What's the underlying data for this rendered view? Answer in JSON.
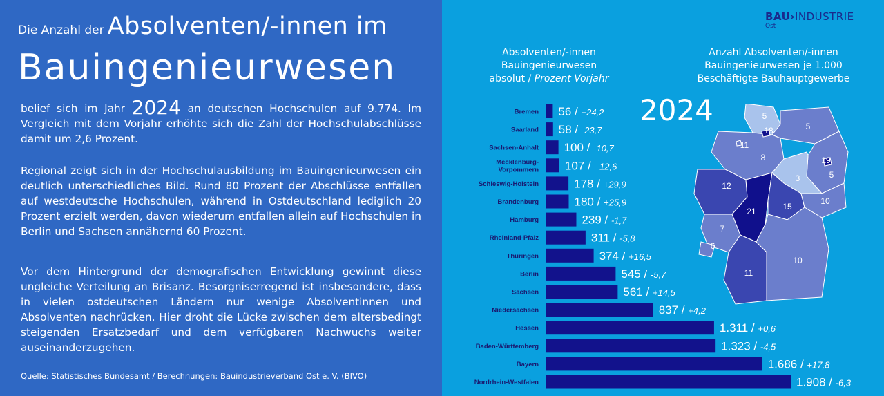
{
  "left": {
    "headline_small": "Die Anzahl der",
    "headline_big": "Absolventen/-innen im",
    "headline_main": "Bauingenieurwesen",
    "p1_before": "belief sich im Jahr",
    "p1_year": "2024",
    "p1_after": "an deutschen Hochschulen auf 9.774. Im Vergleich mit dem Vorjahr erhöhte sich die Zahl der Hochschulabschlüsse damit um 2,6 Prozent.",
    "p2": "Regional zeigt sich in der Hochschulausbildung im Bauingenieurwesen ein deutlich unterschiedliches Bild. Rund 80 Prozent der Abschlüsse entfallen auf westdeutsche Hochschulen, während in Ostdeutschland lediglich 20 Prozent erzielt werden, davon wiederum entfallen allein auf Hochschulen in Berlin und Sachsen annähernd 60 Prozent.",
    "p3": "Vor dem Hintergrund der demografischen Entwicklung gewinnt diese ungleiche Verteilung an Brisanz. Besorgniserregend ist insbesondere, dass in vielen ostdeutschen Ländern nur wenige Absolventinnen und Absolventen nachrücken. Hier droht die Lücke zwischen dem altersbedingt steigenden Ersatzbedarf und dem verfügbaren Nachwuchs weiter auseinanderzugehen.",
    "source": "Quelle: Statistisches Bundesamt / Berechnungen: Bauindustrieverband Ost e. V. (BIVO)"
  },
  "logo": {
    "bau": "BAU",
    "arrow": "›",
    "industrie": "INDUSTRIE",
    "ost": "Ost"
  },
  "right": {
    "col1_line1": "Absolventen/-innen",
    "col1_line2": "Bauingenieurwesen",
    "col1_line3a": "absolut /",
    "col1_line3b": "Prozent Vorjahr",
    "col2_line1": "Anzahl Absolventen/-innen",
    "col2_line2": "Bauingenieurwesen je 1.000",
    "col2_line3": "Beschäftigte Bauhauptgewerbe",
    "year": "2024"
  },
  "colors": {
    "left_bg": "#2f68c4",
    "right_bg": "#0aa0df",
    "bar": "#12128c",
    "map_dark": "#10108c",
    "map_mid": "#3a46b0",
    "map_light": "#6b7ecc",
    "map_pale": "#a9c3ec"
  },
  "chart_data": {
    "type": "bar",
    "orientation": "horizontal",
    "categories": [
      "Bremen",
      "Saarland",
      "Sachsen-Anhalt",
      "Mecklenburg-Vorpommern",
      "Schleswig-Holstein",
      "Brandenburg",
      "Hamburg",
      "Rheinland-Pfalz",
      "Thüringen",
      "Berlin",
      "Sachsen",
      "Niedersachsen",
      "Hessen",
      "Baden-Württemberg",
      "Bayern",
      "Nordrhein-Westfalen"
    ],
    "category_lines": [
      [
        "Bremen"
      ],
      [
        "Saarland"
      ],
      [
        "Sachsen-Anhalt"
      ],
      [
        "Mecklenburg-",
        "Vorpommern"
      ],
      [
        "Schleswig-Holstein"
      ],
      [
        "Brandenburg"
      ],
      [
        "Hamburg"
      ],
      [
        "Rheinland-Pfalz"
      ],
      [
        "Thüringen"
      ],
      [
        "Berlin"
      ],
      [
        "Sachsen"
      ],
      [
        "Niedersachsen"
      ],
      [
        "Hessen"
      ],
      [
        "Baden-Württemberg"
      ],
      [
        "Bayern"
      ],
      [
        "Nordrhein-Westfalen"
      ]
    ],
    "values": [
      56,
      58,
      100,
      107,
      178,
      180,
      239,
      311,
      374,
      545,
      561,
      837,
      1311,
      1323,
      1686,
      1908
    ],
    "value_labels": [
      "56",
      "58",
      "100",
      "107",
      "178",
      "180",
      "239",
      "311",
      "374",
      "545",
      "561",
      "837",
      "1.311",
      "1.323",
      "1.686",
      "1.908"
    ],
    "change_labels": [
      "+24,2",
      "-23,7",
      "-10,7",
      "+12,6",
      "+29,9",
      "+25,9",
      "-1,7",
      "-5,8",
      "+16,5",
      "-5,7",
      "+14,5",
      "+4,2",
      "+0,6",
      "-4,5",
      "+17,8",
      "-6,3"
    ],
    "separator": "/"
  },
  "map_data": {
    "regions": [
      {
        "name": "Schleswig-Holstein",
        "value": "5",
        "shade": "map_pale"
      },
      {
        "name": "Mecklenburg-Vorpommern",
        "value": "5",
        "shade": "map_light"
      },
      {
        "name": "Hamburg",
        "value": "18",
        "shade": "map_dark"
      },
      {
        "name": "Bremen",
        "value": "11",
        "shade": "map_light"
      },
      {
        "name": "Niedersachsen",
        "value": "8",
        "shade": "map_light"
      },
      {
        "name": "Brandenburg",
        "value": "5",
        "shade": "map_light"
      },
      {
        "name": "Berlin",
        "value": "19",
        "shade": "map_dark"
      },
      {
        "name": "Sachsen-Anhalt",
        "value": "3",
        "shade": "map_pale"
      },
      {
        "name": "Nordrhein-Westfalen",
        "value": "12",
        "shade": "map_mid"
      },
      {
        "name": "Hessen",
        "value": "21",
        "shade": "map_dark"
      },
      {
        "name": "Thüringen",
        "value": "15",
        "shade": "map_mid"
      },
      {
        "name": "Sachsen",
        "value": "10",
        "shade": "map_light"
      },
      {
        "name": "Rheinland-Pfalz",
        "value": "7",
        "shade": "map_light"
      },
      {
        "name": "Saarland",
        "value": "6",
        "shade": "map_light"
      },
      {
        "name": "Baden-Württemberg",
        "value": "11",
        "shade": "map_mid"
      },
      {
        "name": "Bayern",
        "value": "10",
        "shade": "map_light"
      }
    ]
  }
}
